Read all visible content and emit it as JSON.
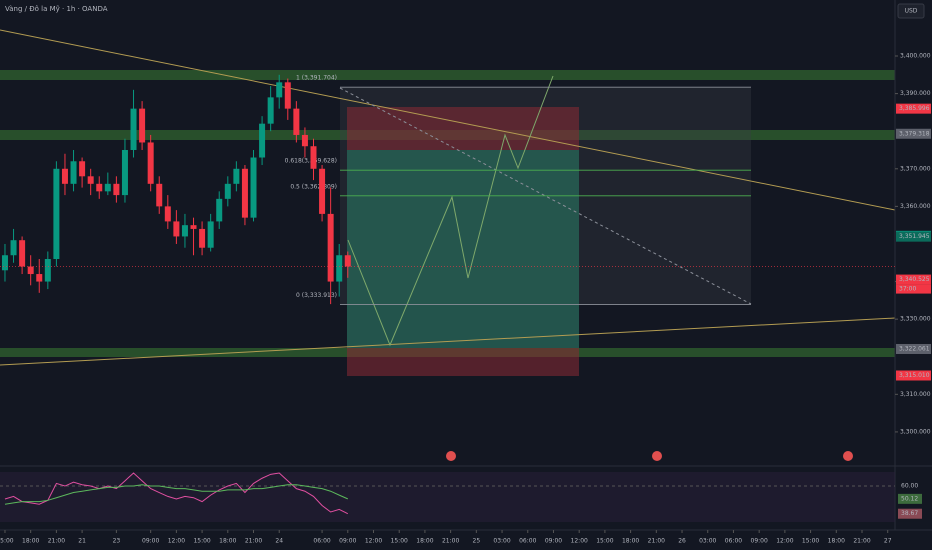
{
  "chart_data": {
    "type": "candlestick",
    "title": "Vàng / Đô la Mỹ · 1h · OANDA",
    "currency_label": "USD",
    "up_color": "#089981",
    "down_color": "#f23645",
    "x": [
      0,
      1,
      2,
      3,
      4,
      5,
      6,
      7,
      8,
      9,
      10,
      11,
      12,
      13,
      14,
      15,
      16,
      17,
      18,
      19,
      20,
      21,
      22,
      23,
      24,
      25,
      26,
      27,
      28,
      29,
      30,
      31,
      32,
      33,
      34,
      35,
      36,
      37,
      38,
      39,
      40
    ],
    "open": [
      3343,
      3347,
      3351,
      3344,
      3342,
      3340,
      3346,
      3370,
      3366,
      3372,
      3368,
      3366,
      3364,
      3366,
      3363,
      3375,
      3386,
      3377,
      3366,
      3360,
      3356,
      3352,
      3355,
      3354,
      3349,
      3356,
      3362,
      3366,
      3370,
      3357,
      3373,
      3382,
      3389,
      3393,
      3386,
      3379,
      3376,
      3370,
      3358,
      3340,
      3347
    ],
    "high": [
      3350,
      3354,
      3352,
      3347,
      3346,
      3348,
      3372,
      3374,
      3375,
      3373,
      3370,
      3368,
      3369,
      3368,
      3378,
      3391,
      3388,
      3379,
      3368,
      3363,
      3359,
      3358,
      3357,
      3356,
      3358,
      3364,
      3368,
      3372,
      3371,
      3375,
      3384,
      3392,
      3395,
      3394,
      3388,
      3381,
      3378,
      3371,
      3365,
      3350,
      3348
    ],
    "low": [
      3340,
      3345,
      3342,
      3339,
      3337,
      3338,
      3344,
      3363,
      3364,
      3365,
      3363,
      3362,
      3363,
      3361,
      3361,
      3373,
      3375,
      3364,
      3358,
      3354,
      3350,
      3349,
      3347,
      3347,
      3348,
      3354,
      3360,
      3364,
      3355,
      3356,
      3371,
      3380,
      3386,
      3383,
      3377,
      3373,
      3367,
      3356,
      3334,
      3336,
      3341
    ],
    "close": [
      3347,
      3351,
      3344,
      3342,
      3340,
      3346,
      3370,
      3366,
      3372,
      3368,
      3366,
      3364,
      3366,
      3363,
      3375,
      3386,
      3377,
      3366,
      3360,
      3356,
      3352,
      3355,
      3354,
      3349,
      3356,
      3362,
      3366,
      3370,
      3357,
      3373,
      3382,
      3389,
      3393,
      3386,
      3379,
      3376,
      3370,
      3358,
      3340,
      3347,
      3344
    ],
    "xlim": [
      -0.58,
      103.85
    ],
    "xticks": [
      {
        "value": 0,
        "label": "15:00"
      },
      {
        "value": 3,
        "label": "18:00"
      },
      {
        "value": 6,
        "label": "21:00"
      },
      {
        "value": 9,
        "label": "21"
      },
      {
        "value": 13,
        "label": "23"
      },
      {
        "value": 17,
        "label": "09:00"
      },
      {
        "value": 20,
        "label": "12:00"
      },
      {
        "value": 23,
        "label": "15:00"
      },
      {
        "value": 26,
        "label": "18:00"
      },
      {
        "value": 29,
        "label": "21:00"
      },
      {
        "value": 32,
        "label": "24"
      },
      {
        "value": 37,
        "label": "06:00"
      },
      {
        "value": 40,
        "label": "09:00"
      },
      {
        "value": 43,
        "label": "12:00"
      },
      {
        "value": 46,
        "label": "15:00"
      },
      {
        "value": 49,
        "label": "18:00"
      },
      {
        "value": 52,
        "label": "21:00"
      },
      {
        "value": 55,
        "label": "25"
      },
      {
        "value": 58,
        "label": "03:00"
      },
      {
        "value": 61,
        "label": "06:00"
      },
      {
        "value": 64,
        "label": "09:00"
      },
      {
        "value": 67,
        "label": "12:00"
      },
      {
        "value": 70,
        "label": "15:00"
      },
      {
        "value": 73,
        "label": "18:00"
      },
      {
        "value": 76,
        "label": "21:00"
      },
      {
        "value": 79,
        "label": "26"
      },
      {
        "value": 82,
        "label": "03:00"
      },
      {
        "value": 85,
        "label": "06:00"
      },
      {
        "value": 88,
        "label": "09:00"
      },
      {
        "value": 91,
        "label": "12:00"
      },
      {
        "value": 94,
        "label": "15:00"
      },
      {
        "value": 97,
        "label": "18:00"
      },
      {
        "value": 100,
        "label": "21:00"
      },
      {
        "value": 103,
        "label": "27"
      }
    ],
    "ylim": [
      3291.2,
      3414.9
    ],
    "yticks": [
      {
        "value": 3400,
        "label": "3,400.000"
      },
      {
        "value": 3390,
        "label": "3,390.000"
      },
      {
        "value": 3370,
        "label": "3,370.000"
      },
      {
        "value": 3360,
        "label": "3,360.000"
      },
      {
        "value": 3340,
        "label": "3,340.000"
      },
      {
        "value": 3330,
        "label": "3,330.000"
      },
      {
        "value": 3310,
        "label": "3,310.000"
      },
      {
        "value": 3300,
        "label": "3,300.000"
      }
    ],
    "price_labels": [
      {
        "value": 3385.996,
        "label": "3,385.996",
        "color": "#f23645"
      },
      {
        "value": 3379.318,
        "label": "3,379.318",
        "color": "#5d606b"
      },
      {
        "value": 3352.171,
        "label": "3,352.171",
        "color": "#089981"
      },
      {
        "value": 3351.945,
        "label": "3,351.945",
        "color": "#0b6b5b"
      },
      {
        "value": 3340.525,
        "label": "3,340.525",
        "color": "#f23645"
      },
      {
        "value": 3322.061,
        "label": "3,322.061",
        "color": "#5d606b"
      },
      {
        "value": 3315.01,
        "label": "3,315.010",
        "color": "#f23645"
      }
    ],
    "countdown": "37:00",
    "fib_levels": [
      {
        "value": 3391.704,
        "label": "1 (3,391.704)"
      },
      {
        "value": 3369.628,
        "label": "0.618(3,369.628)"
      },
      {
        "value": 3362.809,
        "label": "0.5 (3,362.809)"
      },
      {
        "value": 3333.913,
        "label": "0 (3,333.913)"
      }
    ],
    "rsi": {
      "ylim": [
        32.3,
        70.8
      ],
      "yticks": [
        {
          "value": 60,
          "label": "60.00"
        }
      ],
      "series": [
        {
          "name": "RSI",
          "color": "#e04fa0",
          "values": [
            50,
            52,
            48,
            47,
            46,
            49,
            62,
            60,
            63,
            61,
            60,
            58,
            60,
            58,
            64,
            70,
            64,
            58,
            55,
            52,
            50,
            52,
            51,
            48,
            53,
            57,
            60,
            62,
            55,
            62,
            66,
            69,
            70,
            64,
            58,
            56,
            52,
            45,
            40,
            42,
            38.67
          ]
        },
        {
          "name": "MA",
          "color": "#5cb85c",
          "values": [
            46,
            47,
            48,
            48,
            48,
            49,
            51,
            53,
            55,
            56,
            57,
            58,
            59,
            59,
            60,
            60,
            61,
            60,
            60,
            59,
            58,
            58,
            57,
            56,
            56,
            56,
            57,
            57,
            57,
            58,
            58,
            59,
            60,
            61,
            61,
            60,
            59,
            58,
            56,
            53,
            50.12
          ]
        }
      ],
      "value_labels": [
        "38.67",
        "50.12"
      ]
    }
  }
}
